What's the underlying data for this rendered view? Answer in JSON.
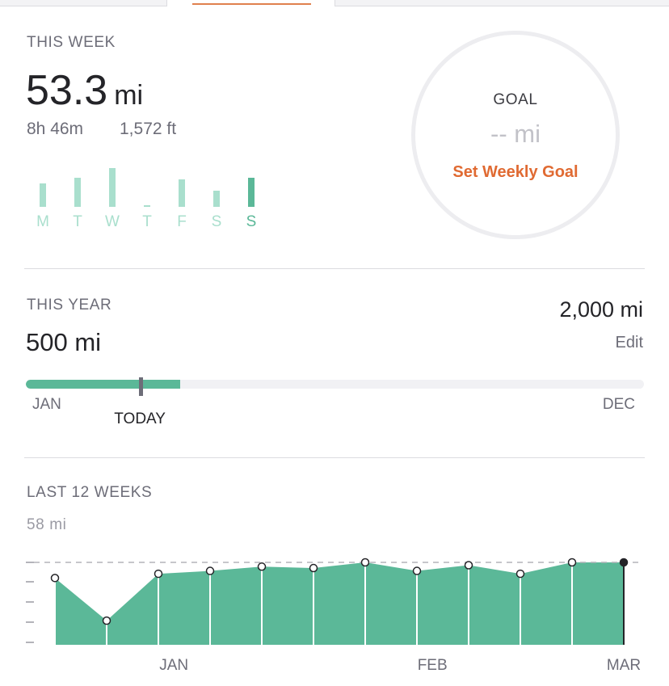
{
  "colors": {
    "accent_orange": "#e06a32",
    "green": "#5bb898",
    "green_light": "#a9dfcd",
    "text_primary": "#242428",
    "text_secondary": "#6d6d78"
  },
  "week": {
    "label": "THIS WEEK",
    "distance_value": "53.3",
    "distance_unit": "mi",
    "duration": "8h 46m",
    "elevation": "1,572 ft",
    "days": [
      {
        "label": "M",
        "level": 0.6
      },
      {
        "label": "T",
        "level": 0.75
      },
      {
        "label": "W",
        "level": 1.0
      },
      {
        "label": "T",
        "level": 0.04
      },
      {
        "label": "F",
        "level": 0.71
      },
      {
        "label": "S",
        "level": 0.42
      },
      {
        "label": "S",
        "level": 0.75
      }
    ],
    "active_day_index": 6
  },
  "goal": {
    "title": "GOAL",
    "value": "-- mi",
    "link": "Set Weekly Goal"
  },
  "year": {
    "label": "THIS YEAR",
    "total": "500 mi",
    "goal": "2,000 mi",
    "edit": "Edit",
    "progress_fraction": 0.25,
    "today_fraction": 0.186,
    "start_label": "JAN",
    "end_label": "DEC",
    "today_label": "TODAY"
  },
  "chart_data": {
    "type": "area",
    "title": "LAST 12 WEEKS",
    "max_label": "58 mi",
    "ylim": [
      0,
      60
    ],
    "reference_line": 58,
    "values": [
      47,
      17,
      50,
      52,
      55,
      54,
      58,
      52,
      56,
      50,
      58,
      58
    ],
    "x_labels": [
      "JAN",
      "FEB",
      "MAR"
    ],
    "x_label_weeks": [
      2.3,
      7.3,
      11
    ]
  }
}
